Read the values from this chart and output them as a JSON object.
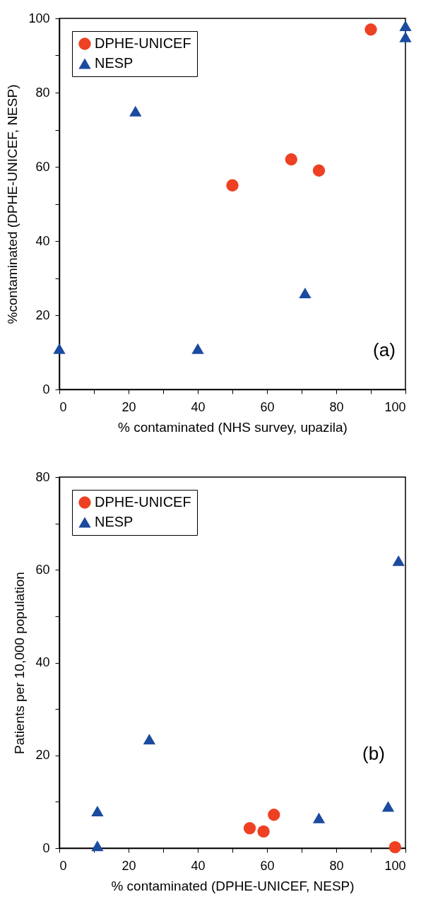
{
  "chart_data": [
    {
      "type": "scatter",
      "xlabel": "% contaminated (NHS survey, upazila)",
      "ylabel": "%contaminated (DPHE-UNICEF, NESP)",
      "xlim": [
        0,
        100
      ],
      "ylim": [
        0,
        100
      ],
      "xticks": [
        0,
        {
          "value": 10,
          "label": null
        },
        20,
        {
          "value": 30,
          "label": null
        },
        40,
        {
          "value": 50,
          "label": null
        },
        60,
        {
          "value": 70,
          "label": null
        },
        80,
        {
          "value": 90,
          "label": null
        },
        100
      ],
      "yticks": [
        0,
        {
          "value": 10,
          "label": null
        },
        20,
        {
          "value": 30,
          "label": null
        },
        40,
        {
          "value": 50,
          "label": null
        },
        60,
        {
          "value": 70,
          "label": null
        },
        80,
        {
          "value": 90,
          "label": null
        },
        100
      ],
      "legend": "top left",
      "grid": false,
      "annotations": [
        "(a)"
      ],
      "series": [
        {
          "name": "DPHE-UNICEF",
          "color": "#ee4023",
          "marker": "circle",
          "x": [
            50,
            67,
            75,
            90
          ],
          "values": [
            55,
            62,
            59,
            97
          ]
        },
        {
          "name": "NESP",
          "color": "#1a4b9e",
          "marker": "triangle",
          "x": [
            0,
            22,
            40,
            71,
            100,
            100
          ],
          "values": [
            11,
            75,
            11,
            26,
            98,
            95
          ]
        }
      ]
    },
    {
      "type": "scatter",
      "xlabel": "% contaminated (DPHE-UNICEF, NESP)",
      "ylabel": "Patients per 10,000 population",
      "xlim": [
        0,
        100
      ],
      "ylim": [
        0,
        80
      ],
      "xticks": [
        0,
        {
          "value": 10,
          "label": null
        },
        20,
        {
          "value": 30,
          "label": null
        },
        40,
        {
          "value": 50,
          "label": null
        },
        60,
        {
          "value": 70,
          "label": null
        },
        80,
        {
          "value": 90,
          "label": null
        },
        100
      ],
      "yticks": [
        0,
        {
          "value": 10,
          "label": null
        },
        20,
        {
          "value": 30,
          "label": null
        },
        40,
        {
          "value": 50,
          "label": null
        },
        60,
        {
          "value": 70,
          "label": null
        },
        80
      ],
      "legend": "top left",
      "grid": false,
      "annotations": [
        "(b)"
      ],
      "series": [
        {
          "name": "DPHE-UNICEF",
          "color": "#ee4023",
          "marker": "circle",
          "x": [
            55,
            59,
            62,
            97
          ],
          "values": [
            4.3,
            3.6,
            7.2,
            0.2
          ]
        },
        {
          "name": "NESP",
          "color": "#1a4b9e",
          "marker": "triangle",
          "x": [
            11,
            11,
            26,
            75,
            95,
            98
          ],
          "values": [
            8,
            0.5,
            23.5,
            6.5,
            9,
            62
          ]
        }
      ]
    }
  ]
}
